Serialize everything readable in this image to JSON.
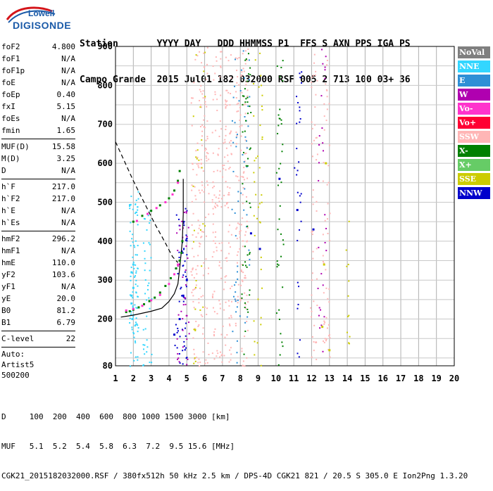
{
  "logo": {
    "top_text": "Lowell",
    "bottom_text": "DIGISONDE"
  },
  "header": {
    "line1": "Station       YYYY DAY   DDD HHMMSS P1  FFS S AXN PPS IGA PS",
    "line2": "Campo Grande  2015 Jul01 182 032000 RSF 005 2 713 100 03+ 36"
  },
  "params": [
    {
      "group": [
        {
          "label": "foF2",
          "value": "4.800"
        },
        {
          "label": "foF1",
          "value": "N/A"
        },
        {
          "label": "foF1p",
          "value": "N/A"
        },
        {
          "label": "foE",
          "value": "N/A"
        },
        {
          "label": "foEp",
          "value": "0.40"
        },
        {
          "label": "fxI",
          "value": "5.15"
        },
        {
          "label": "foEs",
          "value": "N/A"
        },
        {
          "label": "fmin",
          "value": "1.65"
        }
      ]
    },
    {
      "group": [
        {
          "label": "MUF(D)",
          "value": "15.58"
        },
        {
          "label": "M(D)",
          "value": "3.25"
        },
        {
          "label": "D",
          "value": "N/A"
        }
      ]
    },
    {
      "group": [
        {
          "label": "h`F",
          "value": "217.0"
        },
        {
          "label": "h`F2",
          "value": "217.0"
        },
        {
          "label": "h`E",
          "value": "N/A"
        },
        {
          "label": "h`Es",
          "value": "N/A"
        }
      ]
    },
    {
      "group": [
        {
          "label": "hmF2",
          "value": "296.2"
        },
        {
          "label": "hmF1",
          "value": "N/A"
        },
        {
          "label": "hmE",
          "value": "110.0"
        },
        {
          "label": "yF2",
          "value": "103.6"
        },
        {
          "label": "yF1",
          "value": "N/A"
        },
        {
          "label": "yE",
          "value": "20.0"
        },
        {
          "label": "B0",
          "value": "81.2"
        },
        {
          "label": "B1",
          "value": "6.79"
        }
      ]
    },
    {
      "group": [
        {
          "label": "C-level",
          "value": "22"
        }
      ]
    }
  ],
  "auto": {
    "line1": "Auto:",
    "line2": "Artist5",
    "line3": "500200"
  },
  "legend": [
    {
      "label": "NoVal",
      "color": "#7f7f7f"
    },
    {
      "label": "NNE",
      "color": "#33d6ff"
    },
    {
      "label": "E",
      "color": "#2e8fd6"
    },
    {
      "label": "W",
      "color": "#b000b0"
    },
    {
      "label": "Vo-",
      "color": "#ff33cc"
    },
    {
      "label": "Vo+",
      "color": "#ff0033"
    },
    {
      "label": "SSW",
      "color": "#ffb6b6"
    },
    {
      "label": "X-",
      "color": "#008000"
    },
    {
      "label": "X+",
      "color": "#66cc66"
    },
    {
      "label": "SSE",
      "color": "#cccc00"
    },
    {
      "label": "NNW",
      "color": "#0000cc"
    }
  ],
  "footer": {
    "line1": "D     100  200  400  600  800 1000 1500 3000 [km]",
    "line2": "MUF   5.1  5.2  5.4  5.8  6.3  7.2  9.5 15.6 [MHz]",
    "line3": "CGK21_2015182032000.RSF / 380fx512h 50 kHz 2.5 km / DPS-4D CGK21 821 / 20.5 S 305.0 E Ion2Png 1.3.20"
  },
  "chart_data": {
    "type": "scatter",
    "x_ticks": [
      1,
      2,
      3,
      4,
      5,
      6,
      7,
      8,
      9,
      10,
      11,
      12,
      13,
      14,
      15,
      16,
      17,
      18,
      19,
      20
    ],
    "y_ticks": [
      80,
      200,
      300,
      400,
      500,
      600,
      700,
      800,
      900
    ],
    "xlim": [
      1,
      20
    ],
    "ylim": [
      80,
      900
    ],
    "grid": true,
    "legend_position": "right",
    "series": [
      {
        "name": "X-",
        "color": "#008000",
        "points": [
          [
            1.6,
            218
          ],
          [
            1.8,
            220
          ],
          [
            2.0,
            224
          ],
          [
            2.3,
            230
          ],
          [
            2.6,
            238
          ],
          [
            2.9,
            246
          ],
          [
            3.2,
            255
          ],
          [
            3.5,
            268
          ],
          [
            3.8,
            285
          ],
          [
            4.1,
            305
          ],
          [
            4.4,
            330
          ],
          [
            4.6,
            350
          ],
          [
            4.7,
            370
          ],
          [
            4.75,
            400
          ],
          [
            2.0,
            450
          ],
          [
            2.5,
            465
          ],
          [
            3.0,
            478
          ],
          [
            3.5,
            492
          ],
          [
            4.0,
            510
          ],
          [
            4.3,
            530
          ],
          [
            4.5,
            555
          ],
          [
            4.6,
            580
          ]
        ]
      },
      {
        "name": "Vo-",
        "color": "#ff33cc",
        "points": [
          [
            1.6,
            222
          ],
          [
            2.0,
            226
          ],
          [
            2.5,
            234
          ],
          [
            3.0,
            248
          ],
          [
            3.5,
            262
          ],
          [
            4.0,
            290
          ],
          [
            4.3,
            315
          ],
          [
            4.5,
            340
          ],
          [
            2.2,
            452
          ],
          [
            2.8,
            470
          ],
          [
            3.3,
            485
          ],
          [
            3.8,
            500
          ],
          [
            4.2,
            520
          ],
          [
            4.5,
            550
          ]
        ]
      },
      {
        "name": "NNE",
        "color": "#33d6ff",
        "points": [
          [
            1.9,
            240
          ],
          [
            1.9,
            260
          ],
          [
            1.9,
            320
          ],
          [
            2.0,
            280
          ],
          [
            2.0,
            340
          ],
          [
            1.95,
            200
          ]
        ]
      },
      {
        "name": "NNW",
        "color": "#0000cc",
        "points": [
          [
            4.3,
            160
          ],
          [
            4.6,
            200
          ],
          [
            4.8,
            260
          ],
          [
            5.0,
            300
          ],
          [
            8.6,
            420
          ],
          [
            9.1,
            380
          ],
          [
            10.2,
            560
          ],
          [
            11.2,
            480
          ],
          [
            12.1,
            430
          ]
        ]
      },
      {
        "name": "SSE",
        "color": "#cccc00",
        "points": [
          [
            12.6,
            180
          ],
          [
            12.7,
            340
          ],
          [
            12.8,
            600
          ],
          [
            13.0,
            120
          ]
        ]
      }
    ],
    "curves": [
      {
        "name": "profile-solid",
        "points": [
          [
            1.3,
            205
          ],
          [
            2,
            210
          ],
          [
            3,
            220
          ],
          [
            3.6,
            228
          ],
          [
            4.0,
            245
          ],
          [
            4.3,
            265
          ],
          [
            4.5,
            290
          ],
          [
            4.6,
            330
          ],
          [
            4.75,
            400
          ],
          [
            4.8,
            470
          ],
          [
            4.8,
            560
          ]
        ]
      },
      {
        "name": "profile-dashed",
        "points": [
          [
            1.0,
            655
          ],
          [
            1.5,
            605
          ],
          [
            2,
            555
          ],
          [
            2.6,
            500
          ],
          [
            3.2,
            445
          ],
          [
            3.8,
            395
          ],
          [
            4.2,
            360
          ],
          [
            4.5,
            345
          ]
        ]
      }
    ]
  }
}
